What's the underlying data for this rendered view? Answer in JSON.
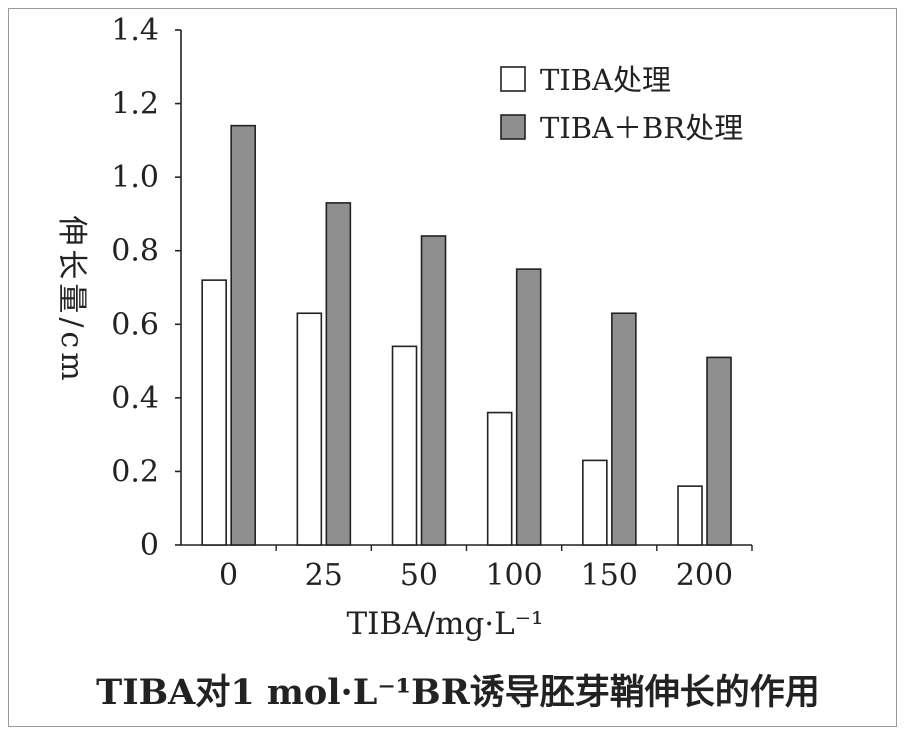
{
  "chart_data": {
    "type": "bar",
    "title": "TIBA对1 mol·L⁻¹BR诱导胚芽鞘伸长的作用",
    "xlabel": "TIBA/mg·L⁻¹",
    "ylabel": "伸长量/cm",
    "categories": [
      "0",
      "25",
      "50",
      "100",
      "150",
      "200"
    ],
    "ylim": [
      0,
      1.4
    ],
    "yticks": [
      "0",
      "0.2",
      "0.4",
      "0.6",
      "0.8",
      "1.0",
      "1.2",
      "1.4"
    ],
    "legend_position": "top-right",
    "series": [
      {
        "name": "TIBA处理",
        "values": [
          0.72,
          0.63,
          0.54,
          0.36,
          0.23,
          0.16
        ],
        "color": "#ffffff"
      },
      {
        "name": "TIBA＋BR处理",
        "values": [
          1.14,
          0.93,
          0.84,
          0.75,
          0.63,
          0.51
        ],
        "color": "#8f8f8f"
      }
    ]
  }
}
